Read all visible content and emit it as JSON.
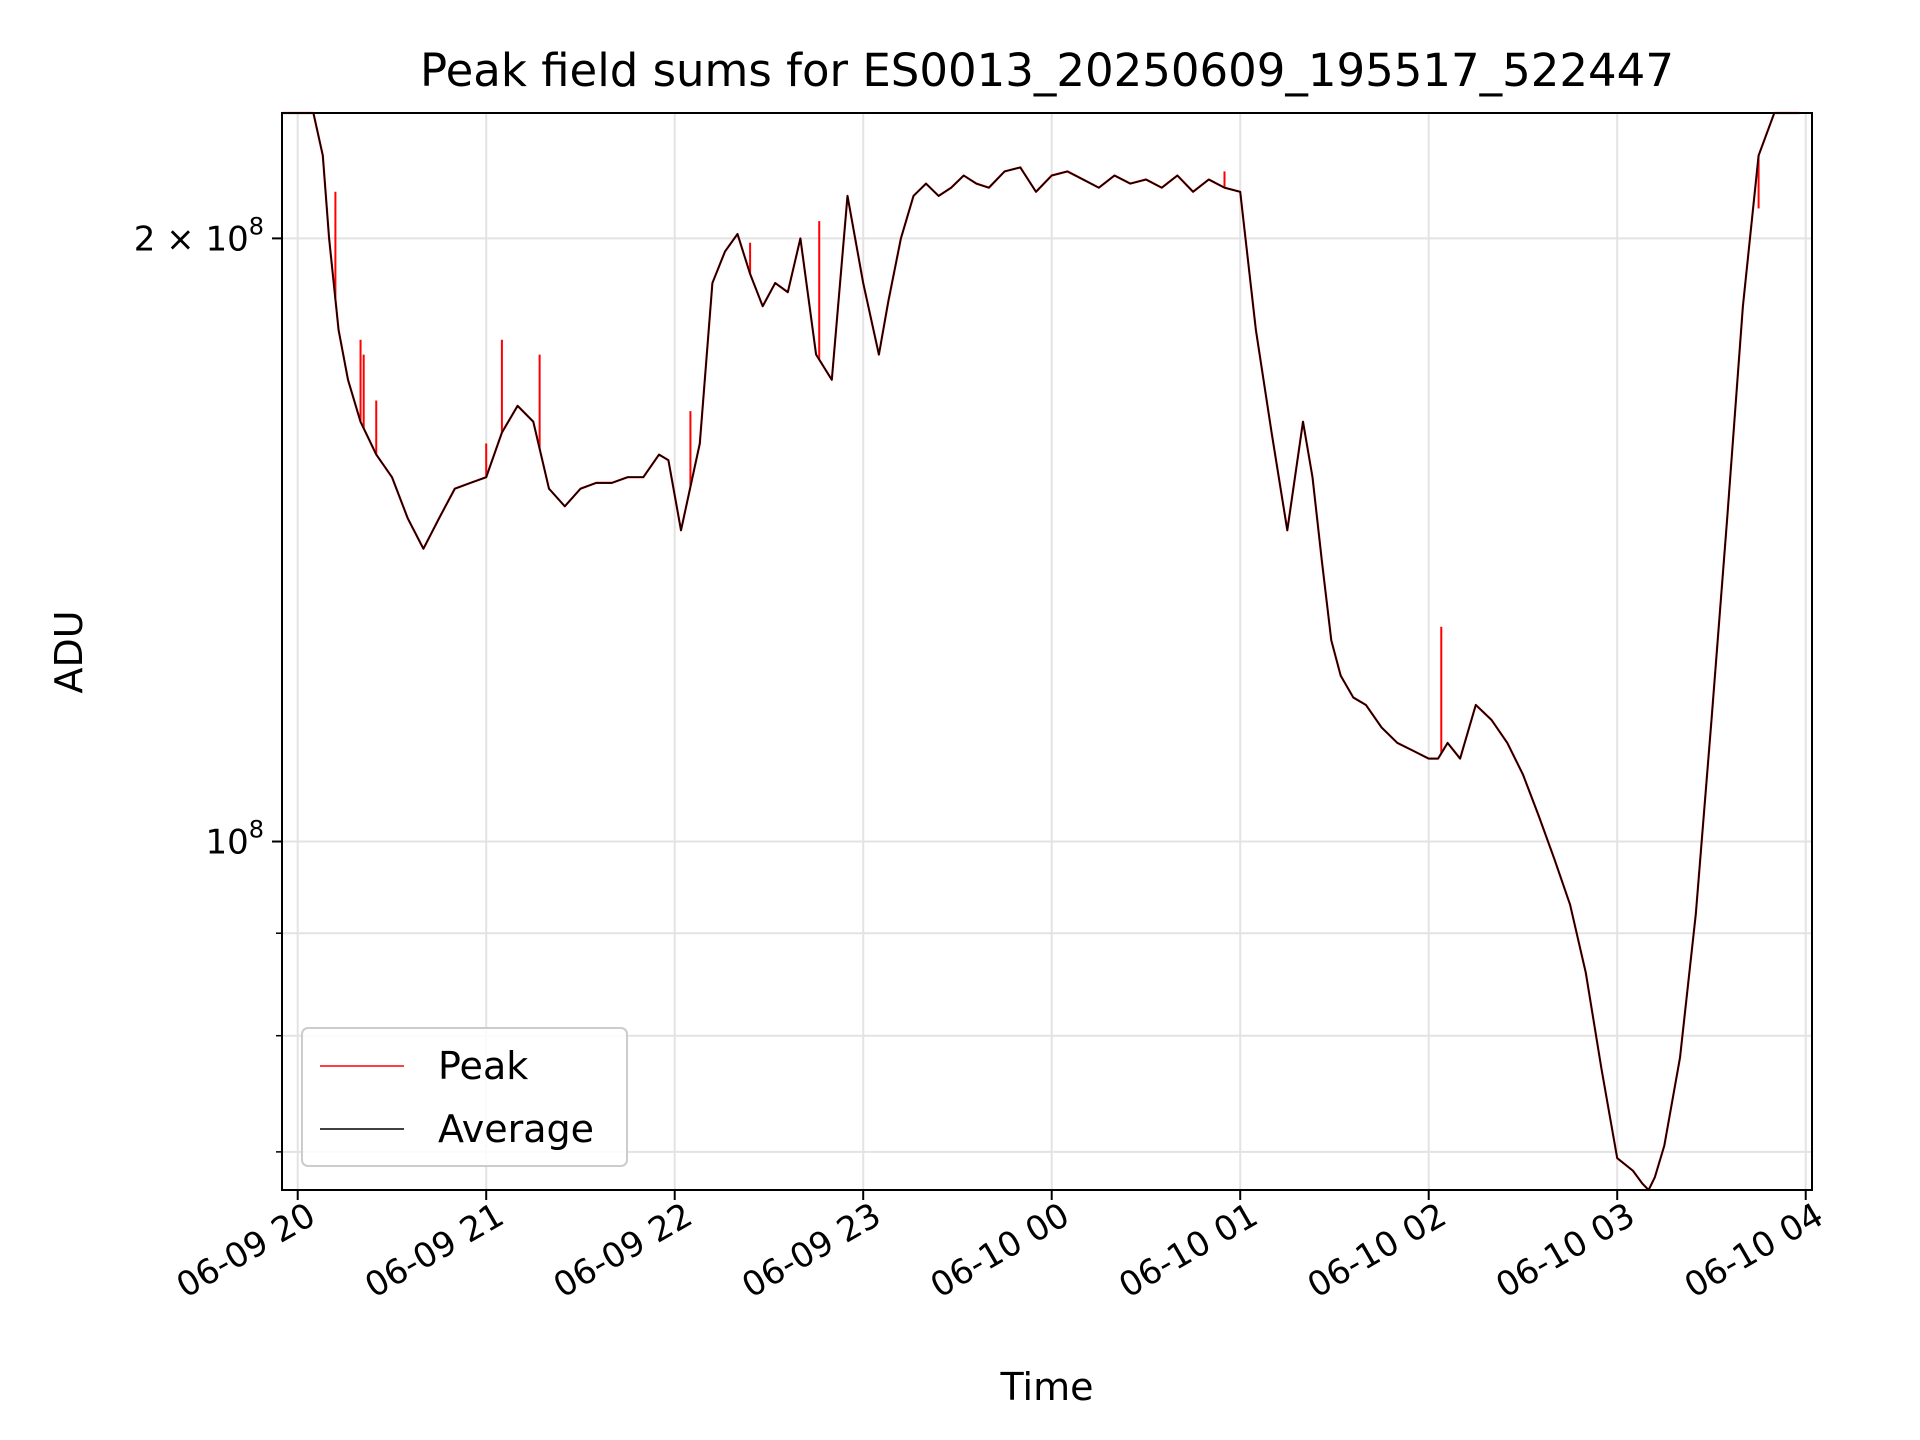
{
  "chart_data": {
    "type": "line",
    "title": "Peak field sums for ES0013_20250609_195517_522447",
    "xlabel": "Time",
    "ylabel": "ADU",
    "yscale": "log",
    "ylim": [
      67000000,
      231000000
    ],
    "xlim": [
      "2025-06-09 19:55",
      "2025-06-10 04:02"
    ],
    "grid": true,
    "legend_position": "lower left",
    "x_ticks": [
      {
        "value": "2025-06-09 20:00",
        "label": "06-09 20"
      },
      {
        "value": "2025-06-09 21:00",
        "label": "06-09 21"
      },
      {
        "value": "2025-06-09 22:00",
        "label": "06-09 22"
      },
      {
        "value": "2025-06-09 23:00",
        "label": "06-09 23"
      },
      {
        "value": "2025-06-10 00:00",
        "label": "06-10 00"
      },
      {
        "value": "2025-06-10 01:00",
        "label": "06-10 01"
      },
      {
        "value": "2025-06-10 02:00",
        "label": "06-10 02"
      },
      {
        "value": "2025-06-10 03:00",
        "label": "06-10 03"
      },
      {
        "value": "2025-06-10 04:00",
        "label": "06-10 04"
      }
    ],
    "y_major_ticks": [
      {
        "value": 100000000,
        "base": "10",
        "exp": "8"
      },
      {
        "value": 200000000,
        "base": "2 × 10",
        "exp": "8"
      }
    ],
    "y_minor_ticks": [
      70000000,
      80000000,
      90000000
    ],
    "series": [
      {
        "name": "Average",
        "color": "#000000",
        "x": [
          "2025-06-09 19:55",
          "2025-06-09 20:05",
          "2025-06-09 20:08",
          "2025-06-09 20:10",
          "2025-06-09 20:13",
          "2025-06-09 20:16",
          "2025-06-09 20:20",
          "2025-06-09 20:25",
          "2025-06-09 20:30",
          "2025-06-09 20:35",
          "2025-06-09 20:40",
          "2025-06-09 20:45",
          "2025-06-09 20:50",
          "2025-06-09 20:55",
          "2025-06-09 21:00",
          "2025-06-09 21:05",
          "2025-06-09 21:10",
          "2025-06-09 21:15",
          "2025-06-09 21:20",
          "2025-06-09 21:25",
          "2025-06-09 21:30",
          "2025-06-09 21:35",
          "2025-06-09 21:40",
          "2025-06-09 21:45",
          "2025-06-09 21:50",
          "2025-06-09 21:55",
          "2025-06-09 21:58",
          "2025-06-09 22:02",
          "2025-06-09 22:08",
          "2025-06-09 22:12",
          "2025-06-09 22:16",
          "2025-06-09 22:20",
          "2025-06-09 22:24",
          "2025-06-09 22:28",
          "2025-06-09 22:32",
          "2025-06-09 22:36",
          "2025-06-09 22:40",
          "2025-06-09 22:45",
          "2025-06-09 22:50",
          "2025-06-09 22:55",
          "2025-06-09 23:00",
          "2025-06-09 23:05",
          "2025-06-09 23:08",
          "2025-06-09 23:12",
          "2025-06-09 23:16",
          "2025-06-09 23:20",
          "2025-06-09 23:24",
          "2025-06-09 23:28",
          "2025-06-09 23:32",
          "2025-06-09 23:36",
          "2025-06-09 23:40",
          "2025-06-09 23:45",
          "2025-06-09 23:50",
          "2025-06-09 23:55",
          "2025-06-10 00:00",
          "2025-06-10 00:05",
          "2025-06-10 00:10",
          "2025-06-10 00:15",
          "2025-06-10 00:20",
          "2025-06-10 00:25",
          "2025-06-10 00:30",
          "2025-06-10 00:35",
          "2025-06-10 00:40",
          "2025-06-10 00:45",
          "2025-06-10 00:50",
          "2025-06-10 00:55",
          "2025-06-10 01:00",
          "2025-06-10 01:05",
          "2025-06-10 01:10",
          "2025-06-10 01:15",
          "2025-06-10 01:20",
          "2025-06-10 01:23",
          "2025-06-10 01:26",
          "2025-06-10 01:29",
          "2025-06-10 01:32",
          "2025-06-10 01:36",
          "2025-06-10 01:40",
          "2025-06-10 01:45",
          "2025-06-10 01:50",
          "2025-06-10 01:55",
          "2025-06-10 02:00",
          "2025-06-10 02:03",
          "2025-06-10 02:06",
          "2025-06-10 02:10",
          "2025-06-10 02:15",
          "2025-06-10 02:20",
          "2025-06-10 02:25",
          "2025-06-10 02:30",
          "2025-06-10 02:35",
          "2025-06-10 02:40",
          "2025-06-10 02:45",
          "2025-06-10 02:50",
          "2025-06-10 02:55",
          "2025-06-10 03:00",
          "2025-06-10 03:05",
          "2025-06-10 03:08",
          "2025-06-10 03:10",
          "2025-06-10 03:12",
          "2025-06-10 03:15",
          "2025-06-10 03:20",
          "2025-06-10 03:25",
          "2025-06-10 03:30",
          "2025-06-10 03:35",
          "2025-06-10 03:40",
          "2025-06-10 03:45",
          "2025-06-10 03:50",
          "2025-06-10 03:55",
          "2025-06-10 03:58"
        ],
        "values": [
          231000000,
          231000000,
          220000000,
          200000000,
          180000000,
          170000000,
          162000000,
          156000000,
          152000000,
          145000000,
          140000000,
          145000000,
          150000000,
          151000000,
          152000000,
          160000000,
          165000000,
          162000000,
          150000000,
          147000000,
          150000000,
          151000000,
          151000000,
          152000000,
          152000000,
          156000000,
          155000000,
          143000000,
          158000000,
          190000000,
          197000000,
          201000000,
          192000000,
          185000000,
          190000000,
          188000000,
          200000000,
          175000000,
          170000000,
          210000000,
          190000000,
          175000000,
          186000000,
          200000000,
          210000000,
          213000000,
          210000000,
          212000000,
          215000000,
          213000000,
          212000000,
          216000000,
          217000000,
          211000000,
          215000000,
          216000000,
          214000000,
          212000000,
          215000000,
          213000000,
          214000000,
          212000000,
          215000000,
          211000000,
          214000000,
          212000000,
          211000000,
          180000000,
          160000000,
          143000000,
          162000000,
          152000000,
          138000000,
          126000000,
          121000000,
          118000000,
          117000000,
          114000000,
          112000000,
          111000000,
          110000000,
          110000000,
          112000000,
          110000000,
          117000000,
          115000000,
          112000000,
          108000000,
          103000000,
          98000000,
          93000000,
          86000000,
          77000000,
          69500000,
          68500000,
          67500000,
          67000000,
          68000000,
          70500000,
          78000000,
          92000000,
          115000000,
          145000000,
          185000000,
          220000000,
          231000000,
          231000000,
          231000000
        ]
      },
      {
        "name": "Peak",
        "color": "#ff0000",
        "spikes": [
          {
            "x": "2025-06-09 20:12",
            "value": 211000000
          },
          {
            "x": "2025-06-09 20:20",
            "value": 178000000
          },
          {
            "x": "2025-06-09 20:21",
            "value": 175000000
          },
          {
            "x": "2025-06-09 20:25",
            "value": 166000000
          },
          {
            "x": "2025-06-09 21:00",
            "value": 158000000
          },
          {
            "x": "2025-06-09 21:05",
            "value": 178000000
          },
          {
            "x": "2025-06-09 21:17",
            "value": 175000000
          },
          {
            "x": "2025-06-09 22:05",
            "value": 164000000
          },
          {
            "x": "2025-06-09 22:24",
            "value": 199000000
          },
          {
            "x": "2025-06-09 22:46",
            "value": 204000000
          },
          {
            "x": "2025-06-10 00:55",
            "value": 216000000
          },
          {
            "x": "2025-06-10 02:04",
            "value": 128000000
          },
          {
            "x": "2025-06-10 03:45",
            "value": 207000000
          }
        ]
      }
    ],
    "legend": [
      {
        "label": "Peak",
        "color": "#ff0000"
      },
      {
        "label": "Average",
        "color": "#000000"
      }
    ]
  }
}
